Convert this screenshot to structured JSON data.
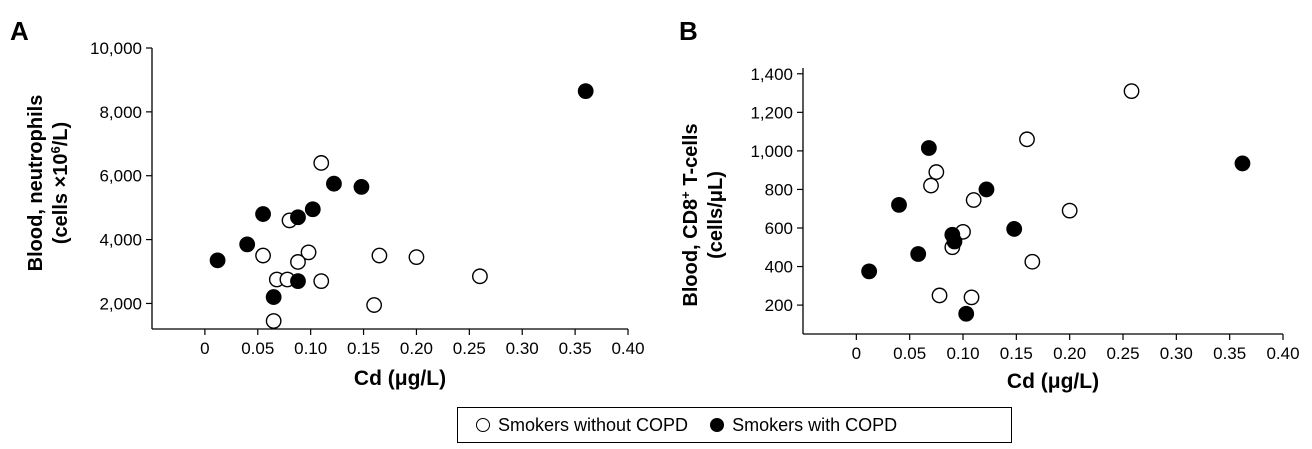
{
  "legend": {
    "open_label": "Smokers without COPD",
    "filled_label": "Smokers with COPD"
  },
  "chart_data": [
    {
      "type": "scatter",
      "panel": "A",
      "xlabel": "Cd (μg/L)",
      "ylabel_line1": "Blood, neutrophils",
      "ylabel_line2_pre": "(cells ×10",
      "ylabel_line2_sup": "6",
      "ylabel_line2_post": "/L)",
      "xlim": [
        -0.05,
        0.4
      ],
      "ylim": [
        1200,
        10000
      ],
      "xticks": [
        0,
        0.05,
        0.1,
        0.15,
        0.2,
        0.25,
        0.3,
        0.35,
        0.4
      ],
      "xtick_labels": [
        "0",
        "0.05",
        "0.10",
        "0.15",
        "0.20",
        "0.25",
        "0.30",
        "0.35",
        "0.40"
      ],
      "yticks": [
        2000,
        4000,
        6000,
        8000,
        10000
      ],
      "ytick_labels": [
        "2,000",
        "4,000",
        "6,000",
        "8,000",
        "10,000"
      ],
      "series": [
        {
          "name": "Smokers without COPD",
          "marker": "open",
          "x": [
            0.11,
            0.08,
            0.055,
            0.098,
            0.088,
            0.068,
            0.078,
            0.11,
            0.165,
            0.2,
            0.26,
            0.16,
            0.065
          ],
          "y": [
            6400,
            4600,
            3500,
            3600,
            3300,
            2750,
            2750,
            2700,
            3500,
            3450,
            2850,
            1950,
            1450
          ]
        },
        {
          "name": "Smokers with COPD",
          "marker": "filled",
          "x": [
            0.012,
            0.04,
            0.055,
            0.088,
            0.102,
            0.122,
            0.148,
            0.065,
            0.088,
            0.36
          ],
          "y": [
            3350,
            3850,
            4800,
            4700,
            4950,
            5750,
            5650,
            2200,
            2700,
            8650
          ]
        }
      ]
    },
    {
      "type": "scatter",
      "panel": "B",
      "xlabel": "Cd (μg/L)",
      "ylabel_line1_pre": "Blood, CD8",
      "ylabel_line1_sup": "+",
      "ylabel_line1_post": " T-cells",
      "ylabel_line2": "(cells/μL)",
      "xlim": [
        -0.05,
        0.4
      ],
      "ylim": [
        50,
        1430
      ],
      "xticks": [
        0,
        0.05,
        0.1,
        0.15,
        0.2,
        0.25,
        0.3,
        0.35,
        0.4
      ],
      "xtick_labels": [
        "0",
        "0.05",
        "0.10",
        "0.15",
        "0.20",
        "0.25",
        "0.30",
        "0.35",
        "0.40"
      ],
      "yticks": [
        200,
        400,
        600,
        800,
        1000,
        1200,
        1400
      ],
      "ytick_labels": [
        "200",
        "400",
        "600",
        "800",
        "1,000",
        "1,200",
        "1,400"
      ],
      "series": [
        {
          "name": "Smokers without COPD",
          "marker": "open",
          "x": [
            0.258,
            0.16,
            0.075,
            0.07,
            0.11,
            0.2,
            0.1,
            0.09,
            0.165,
            0.078,
            0.108
          ],
          "y": [
            1310,
            1060,
            890,
            820,
            745,
            690,
            580,
            500,
            425,
            250,
            240
          ]
        },
        {
          "name": "Smokers with COPD",
          "marker": "filled",
          "x": [
            0.068,
            0.04,
            0.122,
            0.09,
            0.092,
            0.148,
            0.058,
            0.012,
            0.103,
            0.362
          ],
          "y": [
            1015,
            720,
            800,
            565,
            530,
            595,
            465,
            375,
            155,
            935
          ]
        }
      ]
    }
  ]
}
